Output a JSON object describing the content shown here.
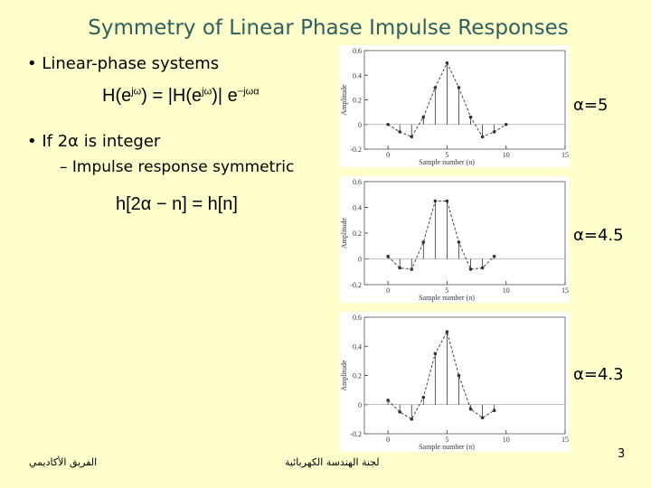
{
  "header": {
    "title": "Symmetry of Linear Phase Impulse Responses"
  },
  "bullets": [
    {
      "text": "Linear-phase systems",
      "equation": [
        "H(e",
        "jω",
        ") = |H(e",
        "jω",
        ")| e",
        "−jωα"
      ]
    },
    {
      "text": "If 2α is integer",
      "sub": "Impulse response symmetric",
      "equation": [
        "h[2α − n] = h[n]"
      ]
    }
  ],
  "plots": [
    {
      "label": "α=5",
      "ylabel": "Amplitude",
      "xlabel": "Sample number (n)",
      "xlim": [
        -2,
        15
      ],
      "xticks": [
        0,
        5,
        10,
        15
      ],
      "ylim": [
        -0.2,
        0.6
      ],
      "yticks": [
        -0.2,
        0,
        0.2,
        0.4,
        0.6
      ],
      "n": [
        0,
        1,
        2,
        3,
        4,
        5,
        6,
        7,
        8,
        9,
        10
      ],
      "values": [
        0,
        -0.06,
        -0.1,
        0.06,
        0.3,
        0.5,
        0.3,
        0.06,
        -0.1,
        -0.06,
        0
      ]
    },
    {
      "label": "α=4.5",
      "ylabel": "Amplitude",
      "xlabel": "Sample number (n)",
      "xlim": [
        -2,
        15
      ],
      "xticks": [
        0,
        5,
        10,
        15
      ],
      "ylim": [
        -0.2,
        0.6
      ],
      "yticks": [
        -0.2,
        0,
        0.2,
        0.4,
        0.6
      ],
      "n": [
        0,
        1,
        2,
        3,
        4,
        5,
        6,
        7,
        8,
        9
      ],
      "values": [
        0.02,
        -0.07,
        -0.08,
        0.13,
        0.45,
        0.45,
        0.13,
        -0.08,
        -0.07,
        0.02
      ]
    },
    {
      "label": "α=4.3",
      "ylabel": "Amplitude",
      "xlabel": "Sample number (n)",
      "xlim": [
        -2,
        15
      ],
      "xticks": [
        0,
        5,
        10,
        15
      ],
      "ylim": [
        -0.2,
        0.6
      ],
      "yticks": [
        -0.2,
        0,
        0.2,
        0.4,
        0.6
      ],
      "n": [
        0,
        1,
        2,
        3,
        4,
        5,
        6,
        7,
        8,
        9
      ],
      "values": [
        0.03,
        -0.05,
        -0.1,
        0.05,
        0.35,
        0.5,
        0.2,
        -0.03,
        -0.09,
        -0.04
      ]
    }
  ],
  "footer": {
    "left": "الفريق الأكاديمي",
    "center": "لجنة الهندسة الكهربائية",
    "page": "3"
  }
}
